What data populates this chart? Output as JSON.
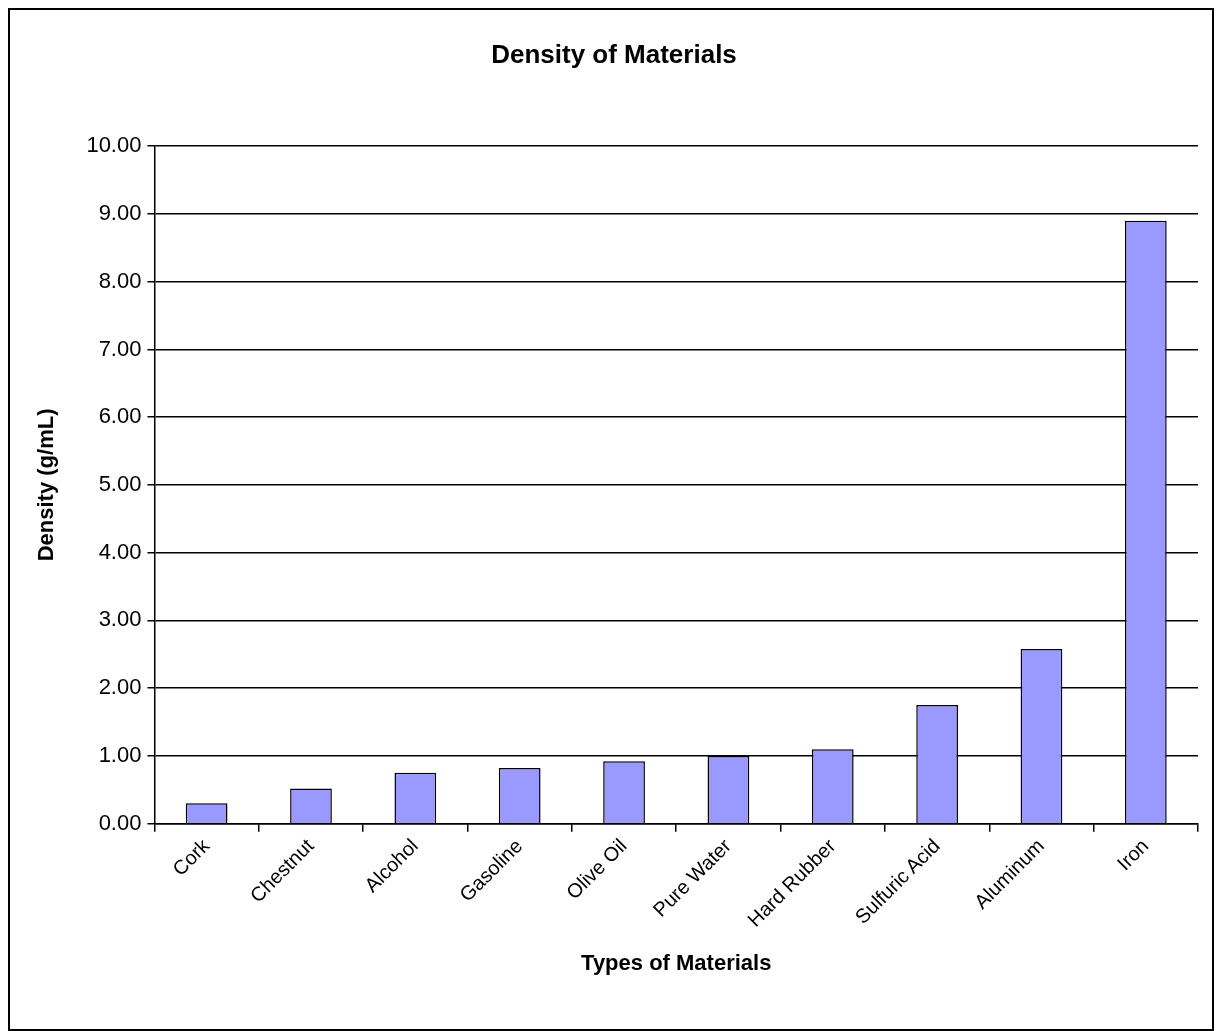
{
  "chart_data": {
    "type": "bar",
    "title": "Density of Materials",
    "xlabel": "Types of Materials",
    "ylabel": "Density (g/mL)",
    "categories": [
      "Cork",
      "Chestnut",
      "Alcohol",
      "Gasoline",
      "Olive Oil",
      "Pure Water",
      "Hard Rubber",
      "Sulfuric Acid",
      "Aluminum",
      "Iron"
    ],
    "values": [
      0.3,
      0.52,
      0.75,
      0.82,
      0.92,
      1.0,
      1.1,
      1.75,
      2.58,
      8.9
    ],
    "color": "#9999ff",
    "ylim": [
      0,
      10
    ],
    "yticks": [
      {
        "value": 0,
        "label": "0.00"
      },
      {
        "value": 1,
        "label": "1.00"
      },
      {
        "value": 2,
        "label": "2.00"
      },
      {
        "value": 3,
        "label": "3.00"
      },
      {
        "value": 4,
        "label": "4.00"
      },
      {
        "value": 5,
        "label": "5.00"
      },
      {
        "value": 6,
        "label": "6.00"
      },
      {
        "value": 7,
        "label": "7.00"
      },
      {
        "value": 8,
        "label": "8.00"
      },
      {
        "value": 9,
        "label": "9.00"
      },
      {
        "value": 10,
        "label": "10.00"
      }
    ],
    "grid": "y",
    "legend": false
  }
}
